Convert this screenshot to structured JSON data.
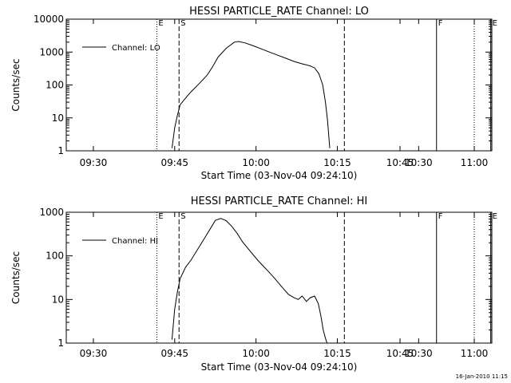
{
  "chart_data": [
    {
      "type": "line",
      "title": "HESSI PARTICLE_RATE Channel: LO",
      "xlabel": "Start Time (03-Nov-04 09:24:10)",
      "ylabel": "Counts/sec",
      "yscale": "log",
      "xlim": [
        25.0,
        103.5
      ],
      "ylim": [
        1,
        10000
      ],
      "xticks": [
        {
          "v": 30,
          "label": "09:30"
        },
        {
          "v": 45,
          "label": "09:45"
        },
        {
          "v": 60,
          "label": "10:00"
        },
        {
          "v": 75,
          "label": "10:15"
        },
        {
          "v": 90,
          "label": "10:30"
        },
        {
          "v": 105,
          "label": "10:45"
        },
        {
          "v": 120,
          "label": "11:00"
        }
      ],
      "yticks": [
        {
          "v": 1,
          "label": "1"
        },
        {
          "v": 10,
          "label": "10"
        },
        {
          "v": 100,
          "label": "100"
        },
        {
          "v": 1000,
          "label": "1000"
        },
        {
          "v": 10000,
          "label": "10000"
        }
      ],
      "legend": {
        "label": "Channel: LO",
        "position": "top-left"
      },
      "markers": [
        {
          "x": 41.7,
          "style": "dotted",
          "label": "E"
        },
        {
          "x": 45.8,
          "style": "dashed",
          "label": "S"
        },
        {
          "x": 76.3,
          "style": "dashed",
          "label": ""
        },
        {
          "x": 93.3,
          "style": "solid",
          "label": "F"
        },
        {
          "x": 103.3,
          "style": "solid",
          "label": "E"
        },
        {
          "x": 119.8,
          "style": "dotted",
          "label": ""
        }
      ],
      "series": [
        {
          "name": "Channel: LO",
          "x": [
            44.5,
            45.0,
            45.5,
            46.0,
            47.0,
            48.0,
            49.5,
            51.0,
            52.0,
            53.0,
            54.5,
            56.0,
            56.8,
            58.0,
            59.5,
            61.0,
            62.5,
            64.0,
            65.5,
            67.0,
            68.5,
            70.0,
            70.8,
            71.6,
            72.3,
            72.8,
            73.2,
            73.6
          ],
          "y": [
            1.2,
            5,
            12,
            25,
            40,
            62,
            110,
            200,
            360,
            700,
            1300,
            2000,
            2100,
            1900,
            1550,
            1250,
            1000,
            800,
            650,
            520,
            440,
            380,
            330,
            220,
            100,
            30,
            8,
            1.2
          ]
        }
      ]
    },
    {
      "type": "line",
      "title": "HESSI PARTICLE_RATE Channel: HI",
      "xlabel": "Start Time (03-Nov-04 09:24:10)",
      "ylabel": "Counts/sec",
      "yscale": "log",
      "xlim": [
        25.0,
        103.5
      ],
      "ylim": [
        1,
        1000
      ],
      "xticks": [
        {
          "v": 30,
          "label": "09:30"
        },
        {
          "v": 45,
          "label": "09:45"
        },
        {
          "v": 60,
          "label": "10:00"
        },
        {
          "v": 75,
          "label": "10:15"
        },
        {
          "v": 90,
          "label": "10:30"
        },
        {
          "v": 105,
          "label": "10:45"
        },
        {
          "v": 120,
          "label": "11:00"
        }
      ],
      "yticks": [
        {
          "v": 1,
          "label": "1"
        },
        {
          "v": 10,
          "label": "10"
        },
        {
          "v": 100,
          "label": "100"
        },
        {
          "v": 1000,
          "label": "1000"
        }
      ],
      "legend": {
        "label": "Channel: HI",
        "position": "top-left"
      },
      "markers": [
        {
          "x": 41.7,
          "style": "dotted",
          "label": "E"
        },
        {
          "x": 45.8,
          "style": "dashed",
          "label": "S"
        },
        {
          "x": 76.3,
          "style": "dashed",
          "label": ""
        },
        {
          "x": 93.3,
          "style": "solid",
          "label": "F"
        },
        {
          "x": 103.3,
          "style": "solid",
          "label": "E"
        },
        {
          "x": 119.8,
          "style": "dotted",
          "label": ""
        }
      ],
      "series": [
        {
          "name": "Channel: HI",
          "x": [
            44.5,
            45.0,
            45.5,
            46.0,
            47.0,
            48.0,
            49.5,
            51.0,
            52.5,
            53.5,
            54.5,
            55.5,
            56.5,
            57.5,
            59.0,
            60.5,
            62.0,
            63.5,
            65.0,
            66.0,
            67.0,
            67.8,
            68.5,
            69.3,
            70.0,
            70.8,
            71.5,
            72.0,
            72.4,
            72.8,
            73.1
          ],
          "y": [
            1.2,
            6,
            15,
            30,
            55,
            80,
            160,
            320,
            650,
            720,
            640,
            480,
            330,
            210,
            125,
            75,
            48,
            30,
            18,
            13,
            11,
            10,
            12,
            9,
            11,
            12,
            8,
            4,
            2,
            1.3,
            1
          ]
        }
      ]
    }
  ],
  "footer": {
    "timestamp": "16-Jan-2010 11:15"
  }
}
